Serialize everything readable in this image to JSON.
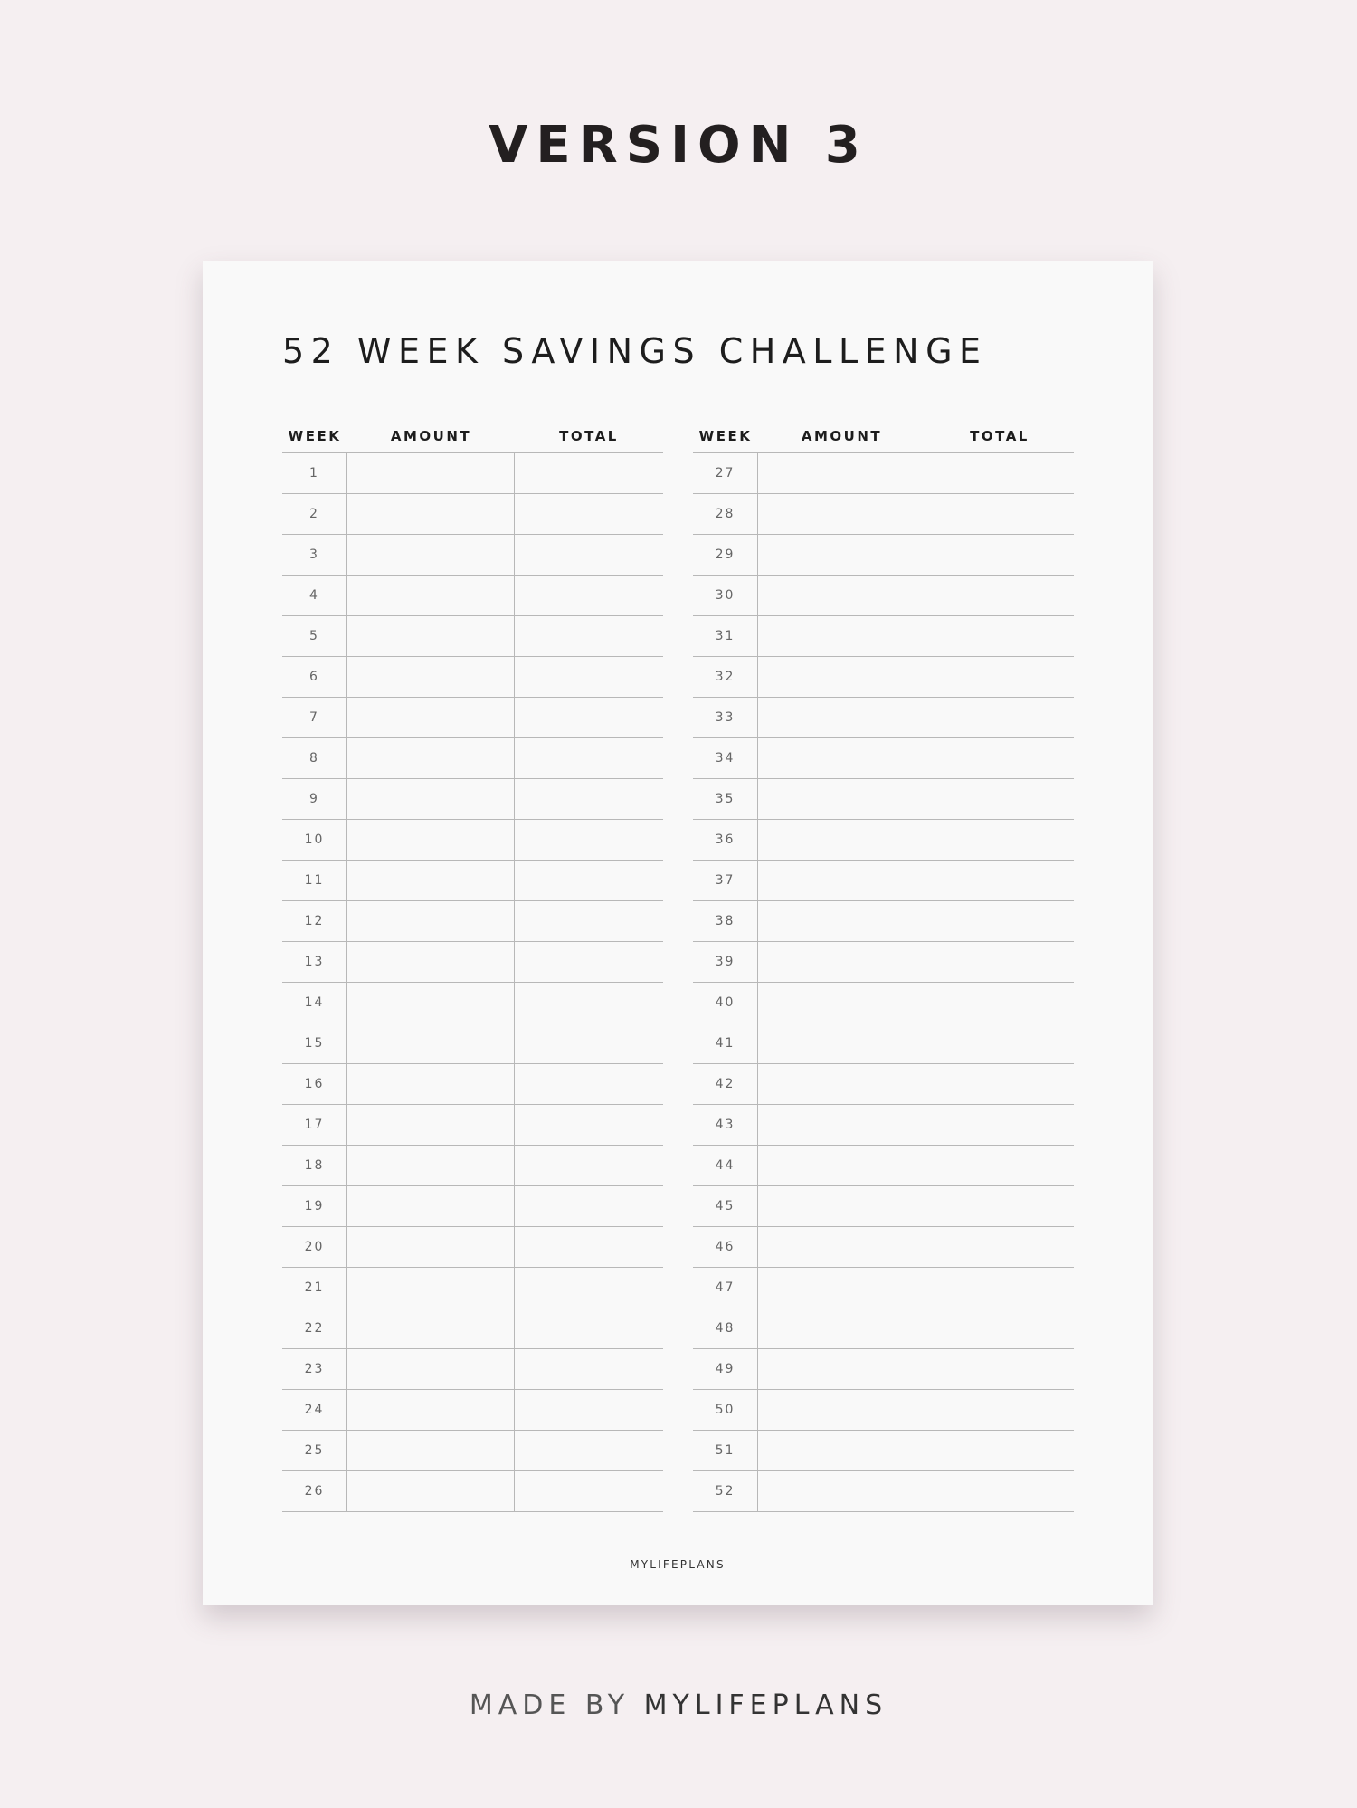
{
  "heading": "VERSION 3",
  "page": {
    "title": "52 WEEK SAVINGS CHALLENGE",
    "columns": {
      "week": "WEEK",
      "amount": "AMOUNT",
      "total": "TOTAL"
    },
    "left_weeks": [
      "1",
      "2",
      "3",
      "4",
      "5",
      "6",
      "7",
      "8",
      "9",
      "10",
      "11",
      "12",
      "13",
      "14",
      "15",
      "16",
      "17",
      "18",
      "19",
      "20",
      "21",
      "22",
      "23",
      "24",
      "25",
      "26"
    ],
    "right_weeks": [
      "27",
      "28",
      "29",
      "30",
      "31",
      "32",
      "33",
      "34",
      "35",
      "36",
      "37",
      "38",
      "39",
      "40",
      "41",
      "42",
      "43",
      "44",
      "45",
      "46",
      "47",
      "48",
      "49",
      "50",
      "51",
      "52"
    ],
    "brand": "MYLIFEPLANS"
  },
  "footer": {
    "prefix": "MADE BY",
    "brand": "MYLIFEPLANS"
  },
  "colors": {
    "background": "#f5eff1",
    "paper": "#f9f9f9",
    "lines": "#b8b8b8",
    "text": "#1d1d1d"
  }
}
